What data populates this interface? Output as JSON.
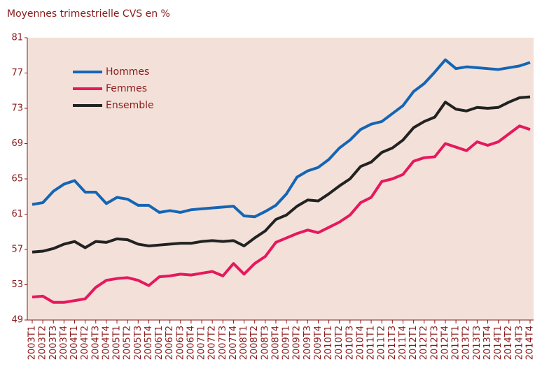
{
  "chart_data": {
    "type": "line",
    "title": "Moyennes trimestrielle CVS en %",
    "categories": [
      "2003T1",
      "2003T2",
      "2003T3",
      "2003T4",
      "2004T1",
      "2004T2",
      "2004T3",
      "2004T4",
      "2005T1",
      "2005T2",
      "2005T3",
      "2005T4",
      "2006T1",
      "2006T2",
      "2006T3",
      "2006T4",
      "2007T1",
      "2007T2",
      "2007T3",
      "2007T4",
      "2008T1",
      "2008T2",
      "2008T3",
      "2008T4",
      "2009T1",
      "2009T2",
      "2009T3",
      "2009T4",
      "2010T1",
      "2010T2",
      "2010T3",
      "2010T4",
      "2011T1",
      "2011T2",
      "2011T3",
      "2011T4",
      "2012T1",
      "2012T2",
      "2012T3",
      "2012T4",
      "2013T1",
      "2013T2",
      "2013T3",
      "2013T4",
      "2014T1",
      "2014T2",
      "2014T3",
      "2014T4"
    ],
    "series": [
      {
        "name": "Hommes",
        "color": "#1565b5",
        "values": [
          62.1,
          62.3,
          63.6,
          64.4,
          64.8,
          63.5,
          63.5,
          62.2,
          62.9,
          62.7,
          62.0,
          62.0,
          61.2,
          61.4,
          61.2,
          61.5,
          61.6,
          61.7,
          61.8,
          61.9,
          60.8,
          60.7,
          61.3,
          62.0,
          63.3,
          65.2,
          65.9,
          66.3,
          67.2,
          68.5,
          69.4,
          70.6,
          71.2,
          71.5,
          72.4,
          73.3,
          74.9,
          75.8,
          77.1,
          78.5,
          77.5,
          77.7,
          77.6,
          77.5,
          77.4,
          77.6,
          77.8,
          78.2
        ]
      },
      {
        "name": "Femmes",
        "color": "#e6185e",
        "values": [
          51.6,
          51.7,
          51.0,
          51.0,
          51.2,
          51.4,
          52.7,
          53.5,
          53.7,
          53.8,
          53.5,
          52.9,
          53.9,
          54.0,
          54.2,
          54.1,
          54.3,
          54.5,
          54.0,
          55.4,
          54.2,
          55.4,
          56.2,
          57.8,
          58.3,
          58.8,
          59.2,
          58.9,
          59.5,
          60.1,
          60.9,
          62.3,
          62.9,
          64.7,
          65.0,
          65.5,
          67.0,
          67.4,
          67.5,
          69.0,
          68.6,
          68.2,
          69.2,
          68.8,
          69.2,
          70.1,
          71.0,
          70.6
        ]
      },
      {
        "name": "Ensemble",
        "color": "#222222",
        "values": [
          56.7,
          56.8,
          57.1,
          57.6,
          57.9,
          57.2,
          57.9,
          57.8,
          58.2,
          58.1,
          57.6,
          57.4,
          57.5,
          57.6,
          57.7,
          57.7,
          57.9,
          58.0,
          57.9,
          58.0,
          57.4,
          58.3,
          59.1,
          60.4,
          60.9,
          61.9,
          62.6,
          62.5,
          63.3,
          64.2,
          65.0,
          66.4,
          66.9,
          68.0,
          68.5,
          69.4,
          70.8,
          71.5,
          72.0,
          73.7,
          72.9,
          72.7,
          73.1,
          73.0,
          73.1,
          73.7,
          74.2,
          74.3
        ]
      }
    ],
    "ylim": [
      49,
      81
    ],
    "yticks": [
      49,
      53,
      57,
      61,
      65,
      69,
      73,
      77,
      81
    ],
    "grid": false,
    "legend": "upper-left"
  }
}
